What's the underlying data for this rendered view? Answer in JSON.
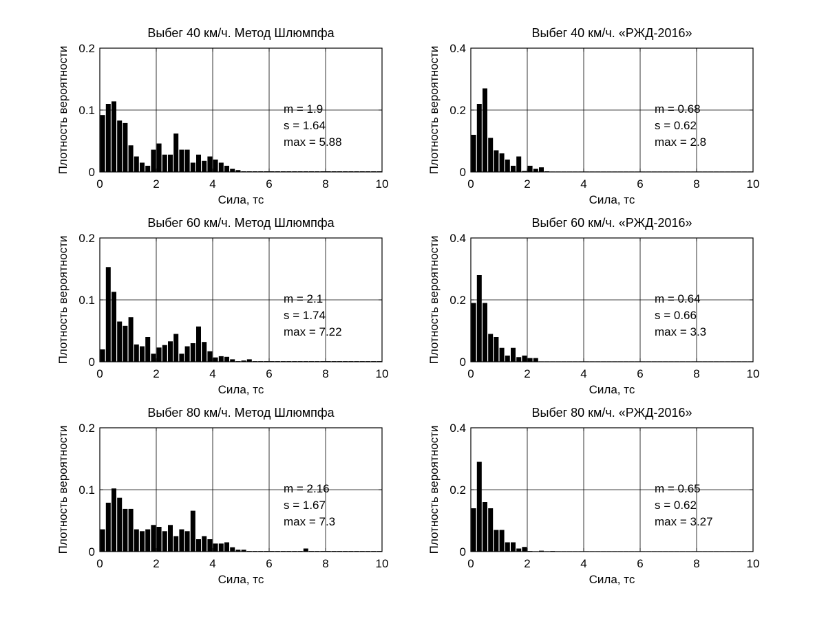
{
  "chart_data": [
    {
      "type": "bar",
      "title": "Выбег 40 км/ч. Метод Шлюмпфа",
      "xlabel": "Сила, тс",
      "ylabel": "Плотность вероятности",
      "xlim": [
        0,
        10
      ],
      "ylim": [
        0,
        0.2
      ],
      "xticks": [
        "0",
        "2",
        "4",
        "6",
        "8",
        "10"
      ],
      "yticks": [
        "0",
        "0.1",
        "0.2"
      ],
      "grid": true,
      "bin_width": 0.2,
      "values": [
        0.092,
        0.11,
        0.114,
        0.083,
        0.079,
        0.043,
        0.025,
        0.015,
        0.01,
        0.036,
        0.046,
        0.028,
        0.028,
        0.062,
        0.036,
        0.036,
        0.015,
        0.028,
        0.018,
        0.025,
        0.02,
        0.015,
        0.01,
        0.005,
        0.003,
        0.001,
        0.001,
        0.001,
        0.001,
        0.001,
        0.001,
        0.001,
        0.001,
        0.001,
        0.001,
        0.001,
        0.001,
        0.001,
        0.001,
        0.001,
        0.001,
        0.001,
        0.001,
        0.001,
        0.001,
        0.001,
        0.001,
        0.001,
        0.001,
        0.001
      ],
      "annotations": [
        "m = 1.9",
        "s  = 1.64",
        "max = 5.88"
      ]
    },
    {
      "type": "bar",
      "title": "Выбег 40 км/ч. «РЖД-2016»",
      "xlabel": "Сила, тс",
      "ylabel": "Плотность вероятности",
      "xlim": [
        0,
        10
      ],
      "ylim": [
        0,
        0.4
      ],
      "xticks": [
        "0",
        "2",
        "4",
        "6",
        "8",
        "10"
      ],
      "yticks": [
        "0",
        "0.2",
        "0.4"
      ],
      "grid": true,
      "bin_width": 0.2,
      "values": [
        0.12,
        0.22,
        0.27,
        0.11,
        0.07,
        0.06,
        0.04,
        0.02,
        0.05,
        0.003,
        0.02,
        0.01,
        0.015,
        0.002,
        0.001,
        0.001,
        0.001,
        0.001,
        0.001,
        0.001,
        0.001,
        0.001,
        0.001,
        0.001,
        0.001,
        0.001,
        0.001,
        0.001,
        0.001,
        0.001,
        0.001,
        0.001,
        0.001,
        0.001,
        0.001,
        0.001,
        0.001,
        0.001,
        0.001,
        0.001,
        0.001,
        0.001,
        0.001,
        0.001,
        0.001,
        0.001,
        0.001,
        0.001,
        0.001,
        0.001
      ],
      "annotations": [
        "m = 0.68",
        "s  = 0.62",
        "max = 2.8"
      ]
    },
    {
      "type": "bar",
      "title": "Выбег 60 км/ч. Метод Шлюмпфа",
      "xlabel": "Сила, тс",
      "ylabel": "Плотность вероятности",
      "xlim": [
        0,
        10
      ],
      "ylim": [
        0,
        0.2
      ],
      "xticks": [
        "0",
        "2",
        "4",
        "6",
        "8",
        "10"
      ],
      "yticks": [
        "0",
        "0.1",
        "0.2"
      ],
      "grid": true,
      "bin_width": 0.2,
      "values": [
        0.02,
        0.153,
        0.113,
        0.065,
        0.058,
        0.072,
        0.028,
        0.025,
        0.04,
        0.013,
        0.023,
        0.027,
        0.033,
        0.045,
        0.013,
        0.025,
        0.03,
        0.057,
        0.032,
        0.017,
        0.007,
        0.009,
        0.008,
        0.004,
        0.001,
        0.002,
        0.004,
        0.001,
        0.001,
        0.001,
        0.001,
        0.001,
        0.001,
        0.001,
        0.001,
        0.001,
        0.001,
        0.001,
        0.001,
        0.001,
        0.001,
        0.001,
        0.001,
        0.001,
        0.001,
        0.001,
        0.001,
        0.001,
        0.001,
        0.001
      ],
      "annotations": [
        "m = 2.1",
        "s  = 1.74",
        "max = 7.22"
      ]
    },
    {
      "type": "bar",
      "title": "Выбег 60 км/ч. «РЖД-2016»",
      "xlabel": "Сила, тс",
      "ylabel": "Плотность вероятности",
      "xlim": [
        0,
        10
      ],
      "ylim": [
        0,
        0.4
      ],
      "xticks": [
        "0",
        "2",
        "4",
        "6",
        "8",
        "10"
      ],
      "yticks": [
        "0",
        "0.2",
        "0.4"
      ],
      "grid": true,
      "bin_width": 0.2,
      "values": [
        0.19,
        0.28,
        0.19,
        0.09,
        0.08,
        0.045,
        0.02,
        0.045,
        0.015,
        0.02,
        0.012,
        0.012,
        0.001,
        0.001,
        0.001,
        0.001,
        0.001,
        0.001,
        0.001,
        0.001,
        0.001,
        0.001,
        0.001,
        0.001,
        0.001,
        0.001,
        0.001,
        0.001,
        0.001,
        0.001,
        0.001,
        0.001,
        0.001,
        0.001,
        0.001,
        0.001,
        0.001,
        0.001,
        0.001,
        0.001,
        0.001,
        0.001,
        0.001,
        0.001,
        0.001,
        0.001,
        0.001,
        0.001,
        0.001,
        0.001
      ],
      "annotations": [
        "m = 0.64",
        "s  = 0.66",
        "max = 3.3"
      ]
    },
    {
      "type": "bar",
      "title": "Выбег 80 км/ч. Метод Шлюмпфа",
      "xlabel": "Сила, тс",
      "ylabel": "Плотность вероятности",
      "xlim": [
        0,
        10
      ],
      "ylim": [
        0,
        0.2
      ],
      "xticks": [
        "0",
        "2",
        "4",
        "6",
        "8",
        "10"
      ],
      "yticks": [
        "0",
        "0.1",
        "0.2"
      ],
      "grid": true,
      "bin_width": 0.2,
      "values": [
        0.036,
        0.079,
        0.102,
        0.087,
        0.069,
        0.069,
        0.036,
        0.033,
        0.036,
        0.043,
        0.04,
        0.033,
        0.043,
        0.025,
        0.036,
        0.033,
        0.066,
        0.02,
        0.025,
        0.02,
        0.013,
        0.013,
        0.015,
        0.007,
        0.003,
        0.003,
        0.001,
        0.001,
        0.001,
        0.001,
        0.001,
        0.001,
        0.001,
        0.001,
        0.001,
        0.001,
        0.005,
        0.001,
        0.001,
        0.001,
        0.001,
        0.001,
        0.001,
        0.001,
        0.001,
        0.001,
        0.001,
        0.001,
        0.001,
        0.001
      ],
      "annotations": [
        "m = 2.16",
        "s  = 1.67",
        "max = 7.3"
      ]
    },
    {
      "type": "bar",
      "title": "Выбег 80 км/ч. «РЖД-2016»",
      "xlabel": "Сила, тс",
      "ylabel": "Плотность вероятности",
      "xlim": [
        0,
        10
      ],
      "ylim": [
        0,
        0.4
      ],
      "xticks": [
        "0",
        "2",
        "4",
        "6",
        "8",
        "10"
      ],
      "yticks": [
        "0",
        "0.2",
        "0.4"
      ],
      "grid": true,
      "bin_width": 0.2,
      "values": [
        0.14,
        0.29,
        0.16,
        0.14,
        0.07,
        0.07,
        0.03,
        0.03,
        0.01,
        0.015,
        0.002,
        0.001,
        0.003,
        0.001,
        0.002,
        0.001,
        0.001,
        0.001,
        0.001,
        0.001,
        0.001,
        0.001,
        0.001,
        0.001,
        0.001,
        0.001,
        0.001,
        0.001,
        0.001,
        0.001,
        0.001,
        0.001,
        0.001,
        0.001,
        0.001,
        0.001,
        0.001,
        0.001,
        0.001,
        0.001,
        0.001,
        0.001,
        0.001,
        0.001,
        0.001,
        0.001,
        0.001,
        0.001,
        0.001,
        0.001
      ],
      "annotations": [
        "m = 0.65",
        "s  = 0.62",
        "max = 3.27"
      ]
    }
  ]
}
